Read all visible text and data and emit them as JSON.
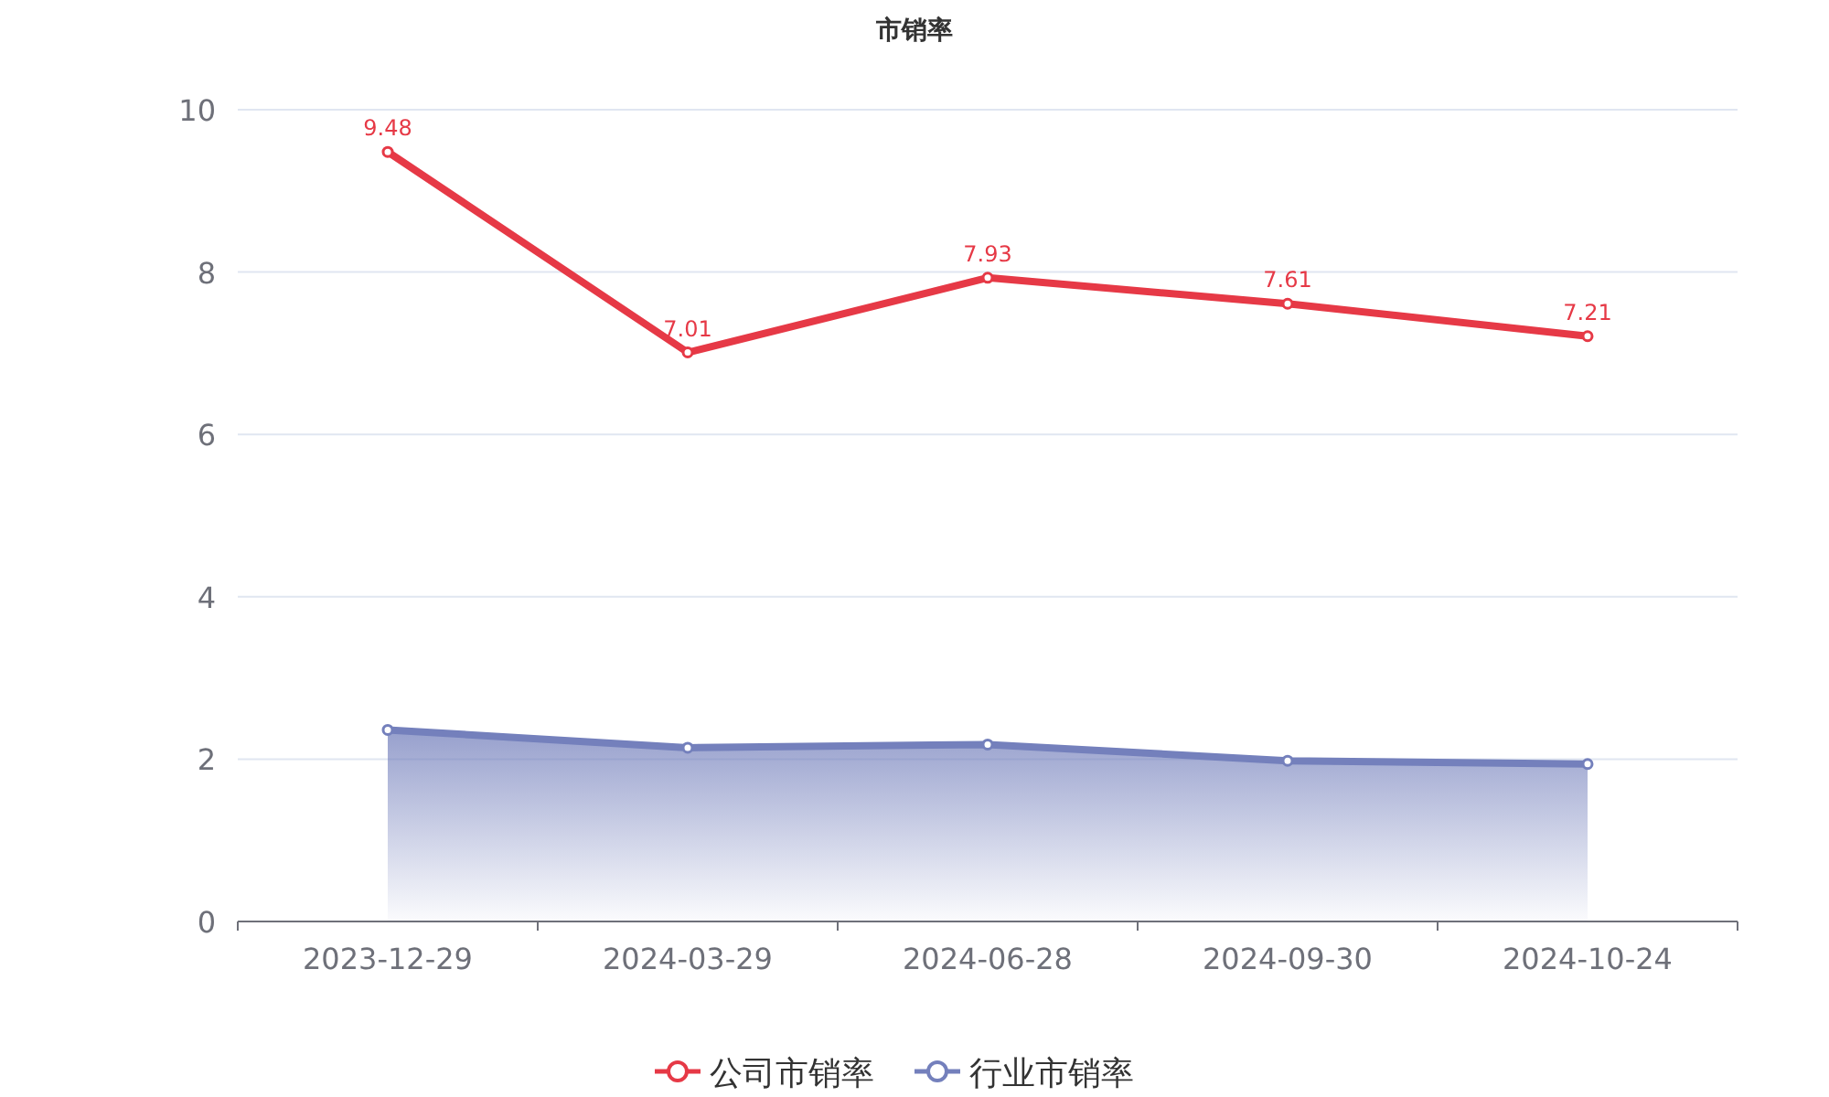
{
  "chart_data": {
    "type": "line",
    "title": "市销率",
    "categories": [
      "2023-12-29",
      "2024-03-29",
      "2024-06-28",
      "2024-09-30",
      "2024-10-24"
    ],
    "series": [
      {
        "name": "公司市销率",
        "color": "#e63946",
        "values": [
          9.48,
          7.01,
          7.93,
          7.61,
          7.21
        ],
        "value_labels": [
          "9.48",
          "7.01",
          "7.93",
          "7.61",
          "7.21"
        ]
      },
      {
        "name": "行业市销率",
        "color": "#7480bc",
        "type": "area",
        "values": [
          2.36,
          2.14,
          2.18,
          1.98,
          1.94
        ]
      }
    ],
    "ylim": [
      0,
      10
    ],
    "yticks": [
      0,
      2,
      4,
      6,
      8,
      10
    ],
    "grid": "y",
    "legend": "bottom",
    "marker": "circle",
    "line_style": "solid"
  }
}
